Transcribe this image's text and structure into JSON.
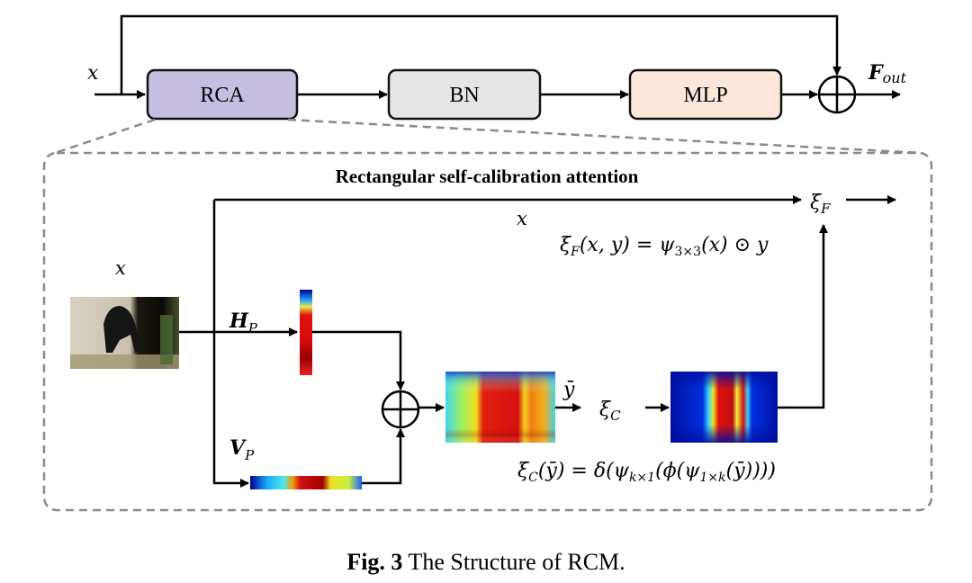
{
  "top_row": {
    "input_label": "x",
    "blocks": [
      {
        "label": "RCA",
        "color": "#c6bfe1"
      },
      {
        "label": "BN",
        "color": "#e6e6e6"
      },
      {
        "label": "MLP",
        "color": "#fce7da"
      }
    ],
    "output_label_main": "F",
    "output_label_sub": "out"
  },
  "rca_detail": {
    "title": "Rectangular self-calibration attention",
    "input_label": "x",
    "skip_label": "x",
    "hp_label_main": "H",
    "hp_label_sub": "P",
    "vp_label_main": "V",
    "vp_label_sub": "P",
    "ybar_label": "ȳ",
    "xi_c_main": "ξ",
    "xi_c_sub": "C",
    "xi_f_main": "ξ",
    "xi_f_sub": "F",
    "formula_f": {
      "a": "ξ",
      "a_sub": "F",
      "b": "(x, y) = ψ",
      "b_sub": "3×3",
      "c": "(x) ⊙ y"
    },
    "formula_c": {
      "a": "ξ",
      "a_sub": "C",
      "b": "(ȳ) = δ(ψ",
      "b_sub": "k×1",
      "c": "(ϕ(ψ",
      "c_sub": "1×k",
      "d": "(ȳ))))"
    }
  },
  "caption": {
    "label": "Fig. 3",
    "text": " The Structure of RCM."
  }
}
